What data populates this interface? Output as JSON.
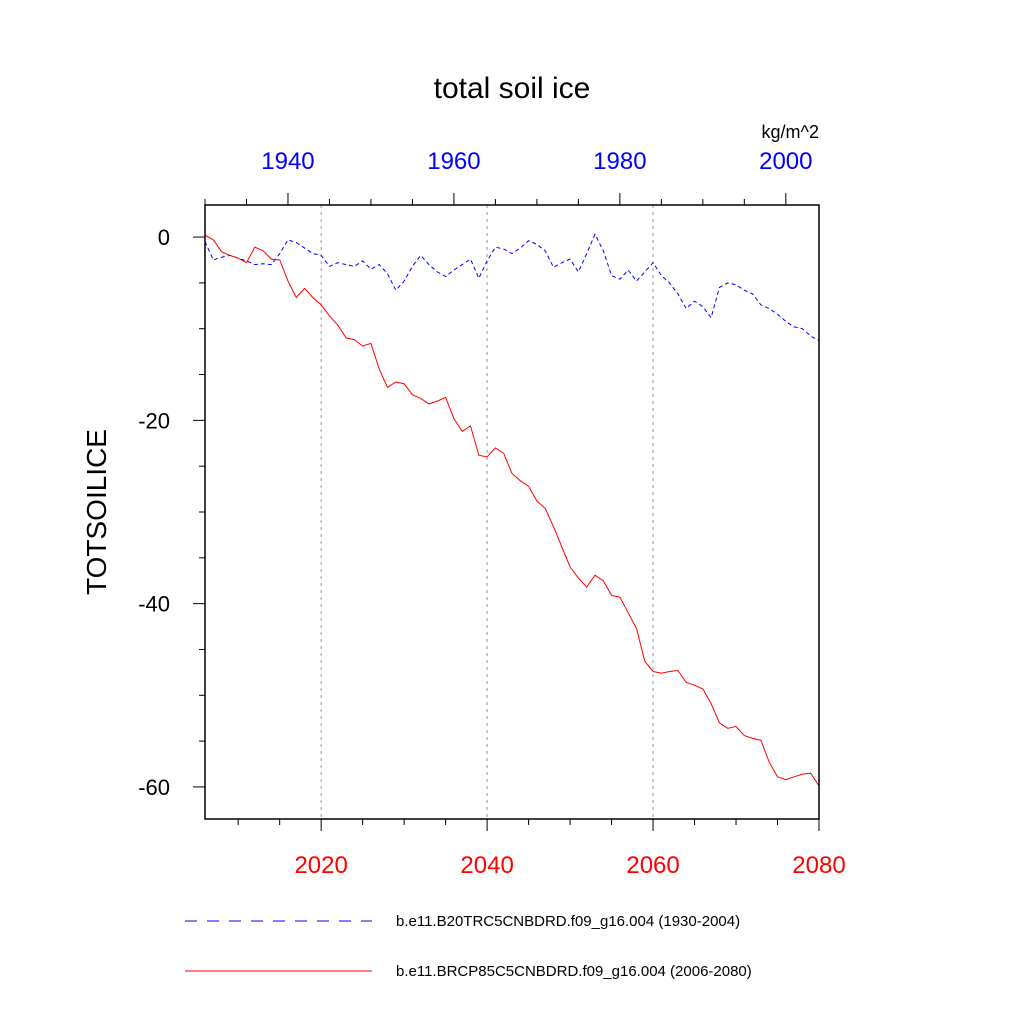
{
  "chart_data": {
    "type": "line",
    "title": "total soil ice",
    "units": "kg/m^2",
    "ylabel": "TOTSOILICE",
    "ylim": [
      -63.5,
      3.5
    ],
    "yticks": [
      0,
      -20,
      -40,
      -60
    ],
    "bottom_axis": {
      "range": [
        2006,
        2080
      ],
      "ticks": [
        2020,
        2040,
        2060,
        2080
      ],
      "color": "#ff0000"
    },
    "top_axis": {
      "range": [
        1930,
        2004
      ],
      "ticks": [
        1940,
        1960,
        1980,
        2000
      ],
      "color": "#0000ff"
    },
    "grid_x": [
      2020,
      2040,
      2060
    ],
    "legend_position": "bottom",
    "series": [
      {
        "name": "b.e11.B20TRC5CNBDRD.f09_g16.004 (1930-2004)",
        "color": "#0000ff",
        "style": "dashed",
        "axis": "top",
        "x": [
          1930,
          1931,
          1932,
          1933,
          1934,
          1935,
          1936,
          1937,
          1938,
          1939,
          1940,
          1941,
          1942,
          1943,
          1944,
          1945,
          1946,
          1947,
          1948,
          1949,
          1950,
          1951,
          1952,
          1953,
          1954,
          1955,
          1956,
          1957,
          1958,
          1959,
          1960,
          1961,
          1962,
          1963,
          1964,
          1965,
          1966,
          1967,
          1968,
          1969,
          1970,
          1971,
          1972,
          1973,
          1974,
          1975,
          1976,
          1977,
          1978,
          1979,
          1980,
          1981,
          1982,
          1983,
          1984,
          1985,
          1986,
          1987,
          1988,
          1989,
          1990,
          1991,
          1992,
          1993,
          1994,
          1995,
          1996,
          1997,
          1998,
          1999,
          2000,
          2001,
          2002,
          2003,
          2004
        ],
        "y": [
          -0.5,
          -2.5,
          -2.2,
          -2.0,
          -2.3,
          -2.6,
          -3.0,
          -2.9,
          -3.0,
          -1.8,
          -0.3,
          -0.6,
          -1.2,
          -1.8,
          -2.0,
          -3.2,
          -2.8,
          -3.0,
          -3.2,
          -2.6,
          -3.5,
          -3.0,
          -4.0,
          -5.8,
          -4.8,
          -3.2,
          -2.0,
          -3.0,
          -3.8,
          -4.3,
          -3.6,
          -3.0,
          -2.4,
          -4.5,
          -2.6,
          -1.1,
          -1.3,
          -1.8,
          -1.2,
          -0.4,
          -0.8,
          -1.5,
          -3.3,
          -2.8,
          -2.4,
          -3.8,
          -1.8,
          0.3,
          -1.5,
          -4.2,
          -4.6,
          -3.6,
          -4.8,
          -3.8,
          -2.8,
          -4.2,
          -5.0,
          -6.2,
          -7.8,
          -7.0,
          -7.6,
          -8.8,
          -5.5,
          -5.0,
          -5.2,
          -5.8,
          -6.2,
          -7.4,
          -7.8,
          -8.4,
          -9.2,
          -9.8,
          -10.0,
          -10.8,
          -11.3
        ]
      },
      {
        "name": "b.e11.BRCP85C5CNBDRD.f09_g16.004 (2006-2080)",
        "color": "#ff0000",
        "style": "solid",
        "axis": "bottom",
        "x": [
          2006,
          2007,
          2008,
          2009,
          2010,
          2011,
          2012,
          2013,
          2014,
          2015,
          2016,
          2017,
          2018,
          2019,
          2020,
          2021,
          2022,
          2023,
          2024,
          2025,
          2026,
          2027,
          2028,
          2029,
          2030,
          2031,
          2032,
          2033,
          2034,
          2035,
          2036,
          2037,
          2038,
          2039,
          2040,
          2041,
          2042,
          2043,
          2044,
          2045,
          2046,
          2047,
          2048,
          2049,
          2050,
          2051,
          2052,
          2053,
          2054,
          2055,
          2056,
          2057,
          2058,
          2059,
          2060,
          2061,
          2062,
          2063,
          2064,
          2065,
          2066,
          2067,
          2068,
          2069,
          2070,
          2071,
          2072,
          2073,
          2074,
          2075,
          2076,
          2077,
          2078,
          2079,
          2080
        ],
        "y": [
          0.2,
          -0.3,
          -1.6,
          -2.0,
          -2.3,
          -2.8,
          -1.1,
          -1.5,
          -2.4,
          -2.5,
          -4.8,
          -6.6,
          -5.6,
          -6.6,
          -7.4,
          -8.6,
          -9.6,
          -11.0,
          -11.2,
          -11.9,
          -11.6,
          -14.4,
          -16.4,
          -15.8,
          -16.0,
          -17.2,
          -17.6,
          -18.2,
          -17.9,
          -17.5,
          -19.8,
          -21.2,
          -20.6,
          -23.8,
          -24.0,
          -23.0,
          -23.6,
          -25.8,
          -26.6,
          -27.2,
          -28.8,
          -29.6,
          -31.6,
          -33.8,
          -36.0,
          -37.2,
          -38.2,
          -36.9,
          -37.5,
          -39.1,
          -39.3,
          -41.0,
          -42.7,
          -46.3,
          -47.4,
          -47.6,
          -47.4,
          -47.3,
          -48.6,
          -48.9,
          -49.3,
          -50.9,
          -53.0,
          -53.6,
          -53.4,
          -54.4,
          -54.7,
          -54.9,
          -57.3,
          -58.9,
          -59.2,
          -58.9,
          -58.6,
          -58.5,
          -59.9
        ]
      }
    ]
  }
}
